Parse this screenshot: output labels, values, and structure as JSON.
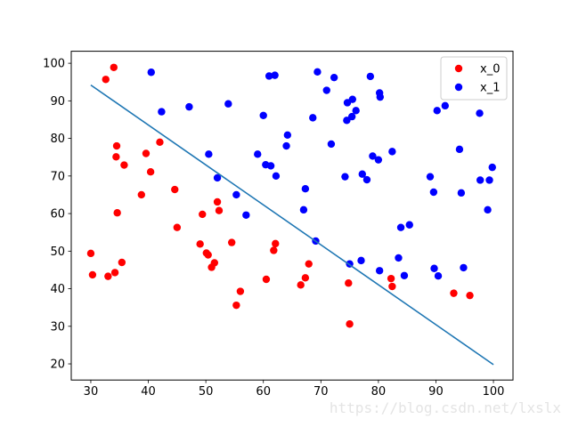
{
  "chart_data": {
    "type": "scatter",
    "xlim": [
      26.6,
      103.4
    ],
    "ylim": [
      15.7,
      103.2
    ],
    "xticks": [
      30,
      40,
      50,
      60,
      70,
      80,
      90,
      100
    ],
    "yticks": [
      20,
      30,
      40,
      50,
      60,
      70,
      80,
      90,
      100
    ],
    "grid": false,
    "legend_position": "top-right",
    "series": [
      {
        "name": "x_0",
        "color": "#ff0000",
        "points": [
          [
            30.0,
            49.4
          ],
          [
            30.3,
            43.7
          ],
          [
            32.6,
            95.7
          ],
          [
            33.0,
            43.3
          ],
          [
            34.0,
            98.9
          ],
          [
            34.2,
            44.3
          ],
          [
            34.4,
            75.1
          ],
          [
            34.5,
            78.0
          ],
          [
            34.6,
            60.2
          ],
          [
            35.4,
            47.0
          ],
          [
            35.8,
            72.9
          ],
          [
            38.8,
            65.0
          ],
          [
            39.6,
            76.0
          ],
          [
            40.4,
            71.1
          ],
          [
            42.0,
            79.0
          ],
          [
            44.6,
            66.4
          ],
          [
            45.0,
            56.3
          ],
          [
            49.0,
            51.9
          ],
          [
            49.4,
            59.8
          ],
          [
            50.1,
            49.5
          ],
          [
            50.4,
            49.0
          ],
          [
            51.0,
            45.7
          ],
          [
            51.5,
            46.9
          ],
          [
            52.0,
            63.1
          ],
          [
            52.3,
            60.8
          ],
          [
            54.5,
            52.3
          ],
          [
            55.3,
            35.6
          ],
          [
            56.0,
            39.3
          ],
          [
            60.5,
            42.5
          ],
          [
            61.8,
            50.2
          ],
          [
            62.1,
            52.0
          ],
          [
            66.5,
            41.0
          ],
          [
            67.3,
            42.9
          ],
          [
            67.9,
            46.6
          ],
          [
            74.8,
            41.5
          ],
          [
            75.0,
            30.6
          ],
          [
            82.2,
            42.7
          ],
          [
            82.4,
            40.6
          ],
          [
            93.1,
            38.8
          ],
          [
            95.9,
            38.2
          ]
        ]
      },
      {
        "name": "x_1",
        "color": "#0000ff",
        "points": [
          [
            40.5,
            97.6
          ],
          [
            42.3,
            87.1
          ],
          [
            47.1,
            88.4
          ],
          [
            50.5,
            75.8
          ],
          [
            52.0,
            69.5
          ],
          [
            53.9,
            89.2
          ],
          [
            55.3,
            65.0
          ],
          [
            57.0,
            59.6
          ],
          [
            59.0,
            75.8
          ],
          [
            60.0,
            86.1
          ],
          [
            60.4,
            73.0
          ],
          [
            61.0,
            96.6
          ],
          [
            61.3,
            72.7
          ],
          [
            62.0,
            96.8
          ],
          [
            62.2,
            70.0
          ],
          [
            64.0,
            78.0
          ],
          [
            64.2,
            80.9
          ],
          [
            67.0,
            61.0
          ],
          [
            67.3,
            66.6
          ],
          [
            68.6,
            85.5
          ],
          [
            69.1,
            52.7
          ],
          [
            69.4,
            97.7
          ],
          [
            71.0,
            92.8
          ],
          [
            71.8,
            78.5
          ],
          [
            72.3,
            96.2
          ],
          [
            74.2,
            69.8
          ],
          [
            74.5,
            84.8
          ],
          [
            74.6,
            89.5
          ],
          [
            75.0,
            46.6
          ],
          [
            75.4,
            85.8
          ],
          [
            75.5,
            90.4
          ],
          [
            76.1,
            87.4
          ],
          [
            77.0,
            47.5
          ],
          [
            77.2,
            70.5
          ],
          [
            78.0,
            69.0
          ],
          [
            78.6,
            96.5
          ],
          [
            79.0,
            75.3
          ],
          [
            80.0,
            74.3
          ],
          [
            80.2,
            92.1
          ],
          [
            80.3,
            91.0
          ],
          [
            80.2,
            44.8
          ],
          [
            82.4,
            76.5
          ],
          [
            83.5,
            48.2
          ],
          [
            83.9,
            56.3
          ],
          [
            84.5,
            43.5
          ],
          [
            85.4,
            57.0
          ],
          [
            89.0,
            69.8
          ],
          [
            89.6,
            65.7
          ],
          [
            89.7,
            45.4
          ],
          [
            90.2,
            87.4
          ],
          [
            90.4,
            43.4
          ],
          [
            91.6,
            88.7
          ],
          [
            94.1,
            77.1
          ],
          [
            94.4,
            65.5
          ],
          [
            94.8,
            45.6
          ],
          [
            97.6,
            86.7
          ],
          [
            97.7,
            68.9
          ],
          [
            99.0,
            61.0
          ],
          [
            99.3,
            68.9
          ],
          [
            99.8,
            72.3
          ]
        ]
      }
    ],
    "line": {
      "color": "#1f77b4",
      "x": [
        30,
        100
      ],
      "y": [
        94.2,
        19.8
      ]
    }
  },
  "watermark": "https://blog.csdn.net/lxslx"
}
